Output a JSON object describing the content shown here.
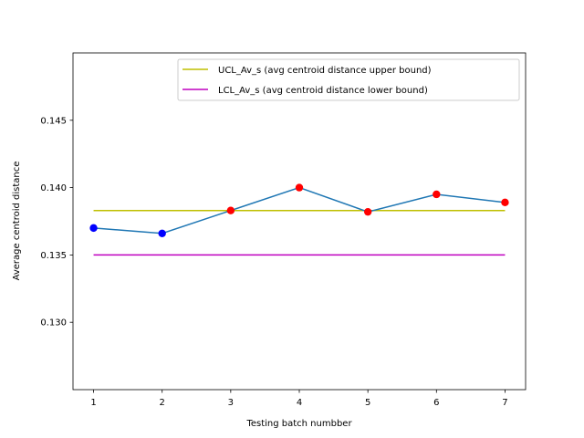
{
  "chart_data": {
    "type": "line",
    "title": "",
    "xlabel": "Testing batch numbber",
    "ylabel": "Average centroid distance",
    "xlim": [
      0.7,
      7.3
    ],
    "ylim": [
      0.125,
      0.15
    ],
    "x_ticks": [
      1,
      2,
      3,
      4,
      5,
      6,
      7
    ],
    "y_ticks": [
      0.13,
      0.135,
      0.14,
      0.145
    ],
    "y_tick_labels": [
      "0.130",
      "0.135",
      "0.140",
      "0.145"
    ],
    "grid": false,
    "legend_position": "top-right",
    "series": [
      {
        "kind": "line-with-markers",
        "x": [
          1,
          2,
          3,
          4,
          5,
          6,
          7
        ],
        "values": [
          0.137,
          0.1366,
          0.1383,
          0.14,
          0.1382,
          0.1395,
          0.1389
        ],
        "color": "#1f77b4",
        "marker_colors": [
          "#0000ff",
          "#0000ff",
          "#ff0000",
          "#ff0000",
          "#ff0000",
          "#ff0000",
          "#ff0000"
        ]
      },
      {
        "name": "UCL_Av_s (avg centroid distance upper bound)",
        "kind": "hline",
        "x": [
          1,
          7
        ],
        "value": 0.1383,
        "color": "#bfbf00"
      },
      {
        "name": "LCL_Av_s (avg centroid distance lower bound)",
        "kind": "hline",
        "x": [
          1,
          7
        ],
        "value": 0.135,
        "color": "#bf00bf"
      }
    ]
  }
}
